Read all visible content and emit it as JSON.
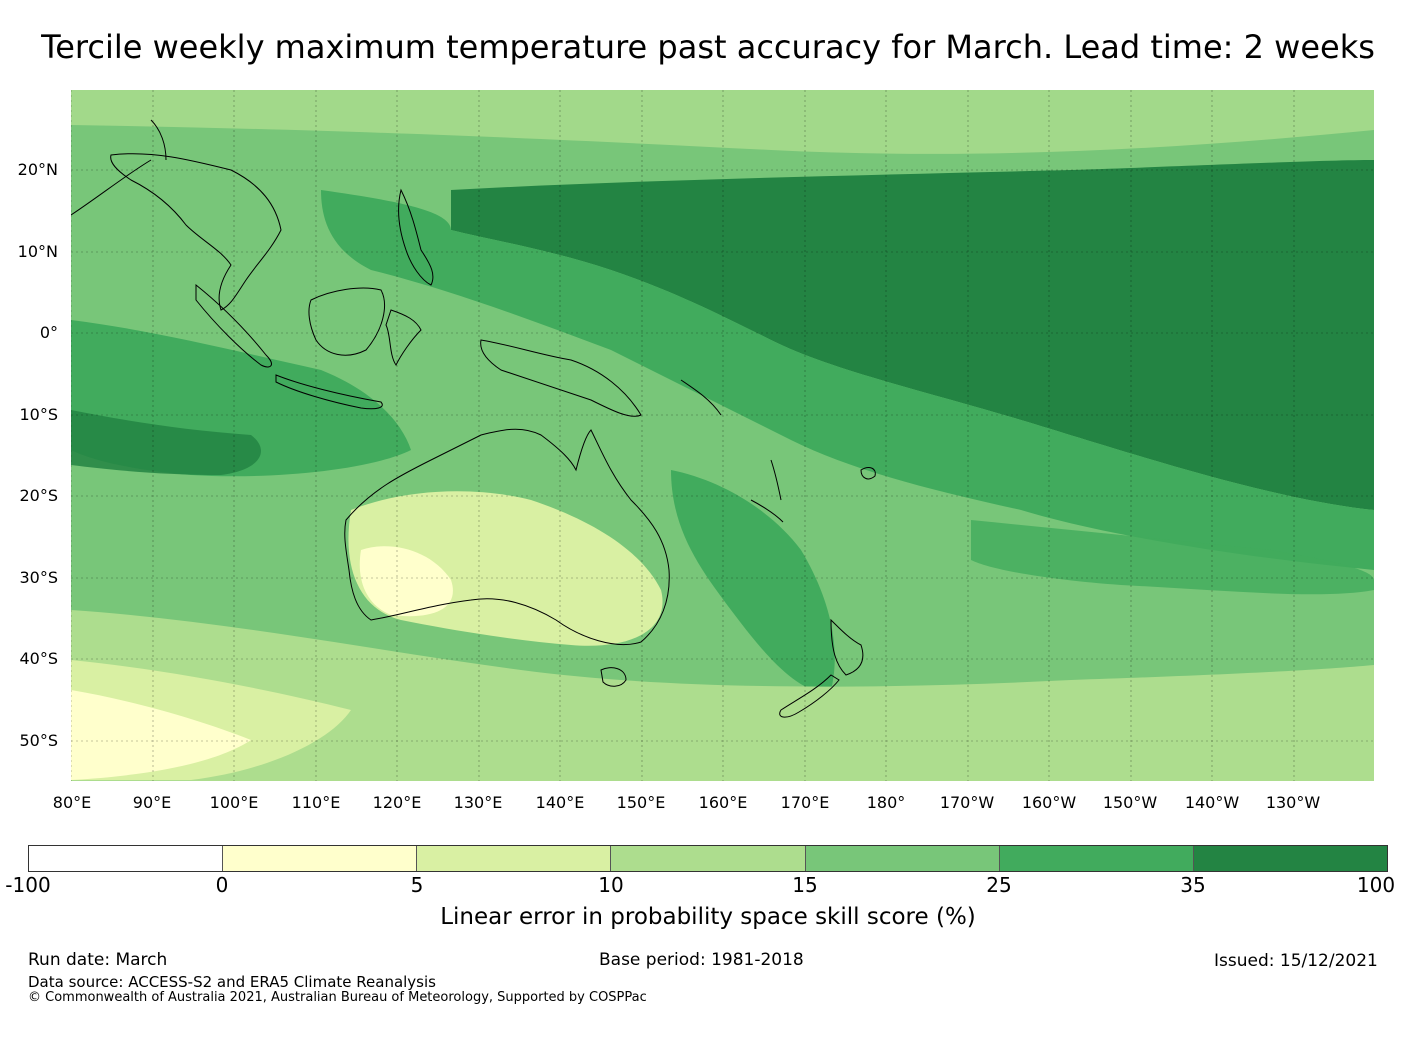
{
  "title": "Tercile weekly maximum temperature past accuracy for March. Lead time: 2 weeks",
  "map": {
    "region": "Pacific / Australia / Indonesia",
    "lat_labels": [
      "20°N",
      "10°N",
      "0°",
      "10°S",
      "20°S",
      "30°S",
      "40°S",
      "50°S"
    ],
    "lon_labels": [
      "80°E",
      "90°E",
      "100°E",
      "110°E",
      "120°E",
      "130°E",
      "140°E",
      "150°E",
      "160°E",
      "170°E",
      "180°",
      "170°W",
      "160°W",
      "150°W",
      "140°W",
      "130°W"
    ]
  },
  "colorbar": {
    "label": "Linear error in probability space skill score (%)",
    "ticks": [
      "-100",
      "0",
      "5",
      "10",
      "15",
      "25",
      "35",
      "100"
    ],
    "colors": [
      "#ffffff",
      "#ffffcc",
      "#d9f0a3",
      "#addd8e",
      "#78c679",
      "#41ab5d",
      "#238443"
    ]
  },
  "footer": {
    "run_date": "Run date: March",
    "base_period": "Base period: 1981-2018",
    "issued": "Issued: 15/12/2021",
    "data_source": "Data source: ACCESS-S2 and ERA5 Climate Reanalysis",
    "copyright": "© Commonwealth of Australia 2021, Australian Bureau of Meteorology, Supported by COSPPac"
  }
}
